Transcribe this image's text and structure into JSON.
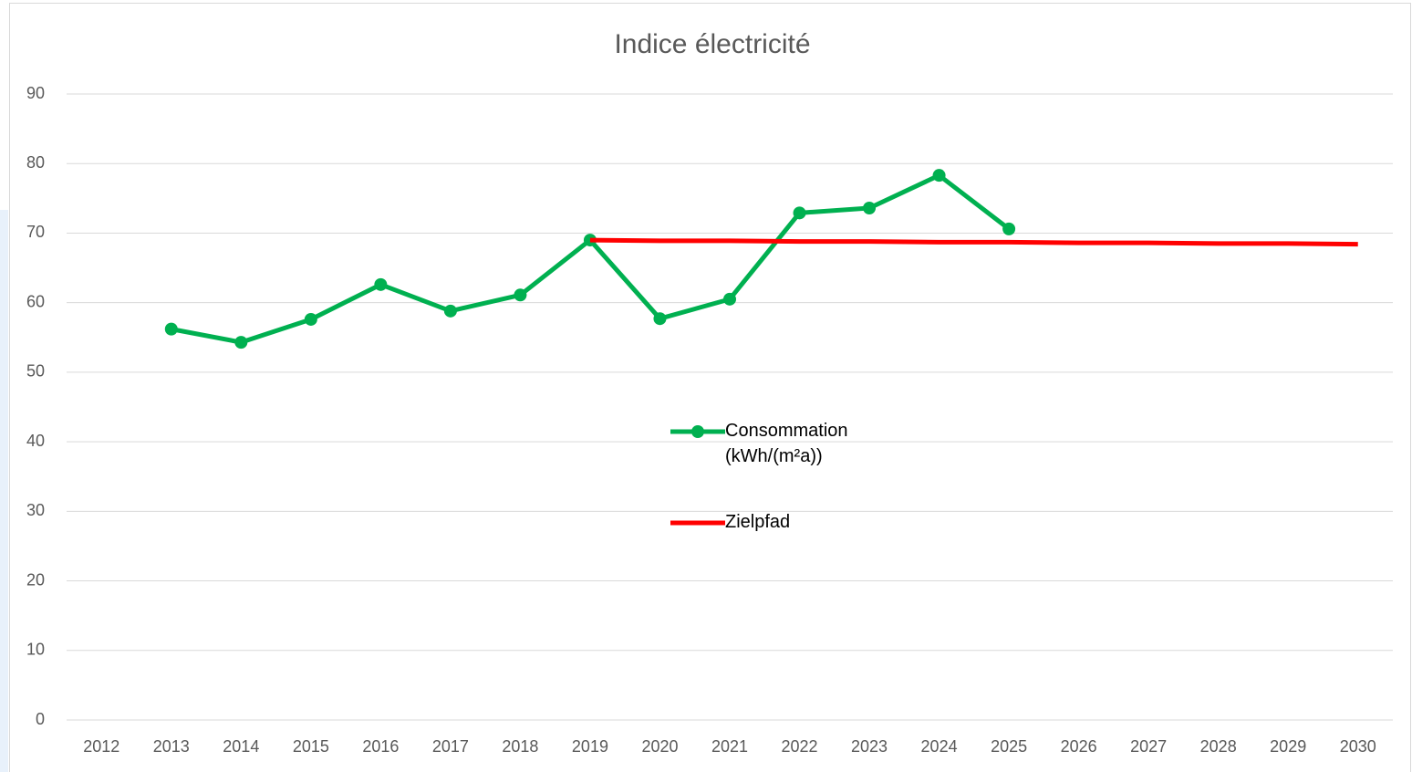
{
  "chart_data": {
    "type": "line",
    "title": "Indice électricité",
    "categories": [
      "2012",
      "2013",
      "2014",
      "2015",
      "2016",
      "2017",
      "2018",
      "2019",
      "2020",
      "2021",
      "2022",
      "2023",
      "2024",
      "2025",
      "2026",
      "2027",
      "2028",
      "2029",
      "2030"
    ],
    "series": [
      {
        "name": "Consommation (kWh/(m²a))",
        "color": "#00b050",
        "marker": true,
        "values": [
          null,
          56.2,
          54.3,
          57.6,
          62.6,
          58.8,
          61.1,
          69.0,
          57.7,
          60.5,
          72.9,
          73.6,
          78.3,
          70.6,
          null,
          null,
          null,
          null,
          null
        ]
      },
      {
        "name": "Zielpfad",
        "color": "#ff0000",
        "marker": false,
        "values": [
          null,
          null,
          null,
          null,
          null,
          null,
          null,
          69.0,
          68.9,
          68.9,
          68.8,
          68.8,
          68.7,
          68.7,
          68.6,
          68.6,
          68.5,
          68.5,
          68.4
        ]
      }
    ],
    "ylim": [
      0,
      90
    ],
    "yticks": [
      0,
      10,
      20,
      30,
      40,
      50,
      60,
      70,
      80,
      90
    ],
    "grid": true
  }
}
